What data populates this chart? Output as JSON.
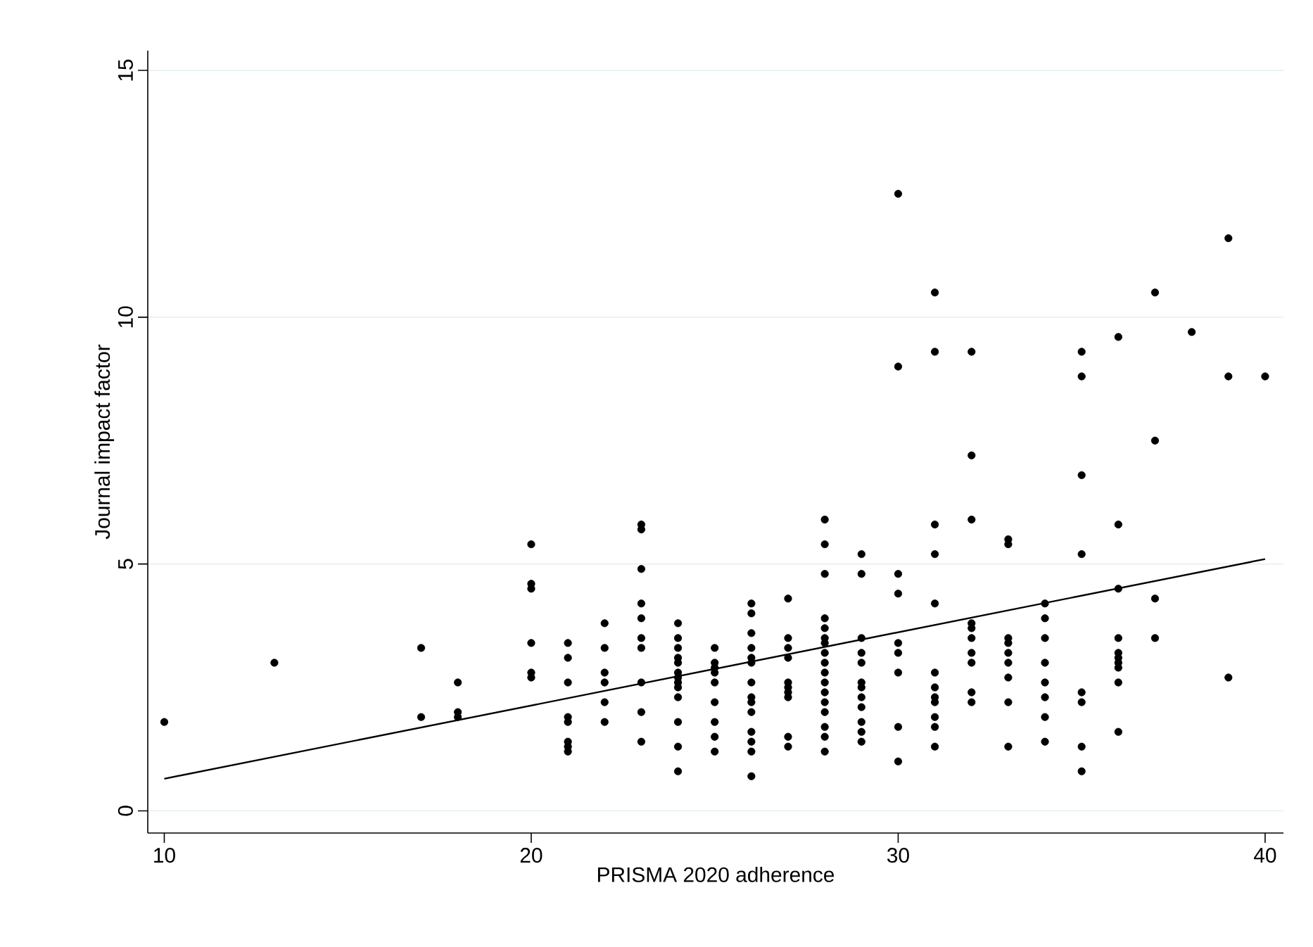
{
  "chart_data": {
    "type": "scatter",
    "xlabel": "PRISMA 2020 adherence",
    "ylabel": "Journal impact factor",
    "xlim": [
      9.55,
      40.5
    ],
    "ylim": [
      -0.45,
      15.4
    ],
    "xticks": [
      10,
      20,
      30,
      40
    ],
    "yticks": [
      0,
      5,
      10,
      15
    ],
    "grid": "y",
    "series": [
      {
        "color": "#000000",
        "marker": "circle",
        "x": [
          10,
          13,
          17,
          17,
          18,
          18,
          18,
          20,
          20,
          20,
          20,
          20,
          20,
          21,
          21,
          21,
          21,
          21,
          21,
          21,
          21,
          22,
          22,
          22,
          22,
          22,
          22,
          23,
          23,
          23,
          23,
          23,
          23,
          23,
          23,
          23,
          23,
          24,
          24,
          24,
          24,
          24,
          24,
          24,
          24,
          24,
          24,
          24,
          24,
          24,
          25,
          25,
          25,
          25,
          25,
          25,
          25,
          25,
          25,
          26,
          26,
          26,
          26,
          26,
          26,
          26,
          26,
          26,
          26,
          26,
          26,
          26,
          26,
          27,
          27,
          27,
          27,
          27,
          27,
          27,
          27,
          27,
          27,
          28,
          28,
          28,
          28,
          28,
          28,
          28,
          28,
          28,
          28,
          28,
          28,
          28,
          28,
          28,
          28,
          28,
          29,
          29,
          29,
          29,
          29,
          29,
          29,
          29,
          29,
          29,
          29,
          29,
          30,
          30,
          30,
          30,
          30,
          30,
          30,
          30,
          30,
          31,
          31,
          31,
          31,
          31,
          31,
          31,
          31,
          31,
          31,
          31,
          31,
          32,
          32,
          32,
          32,
          32,
          32,
          32,
          32,
          32,
          32,
          33,
          33,
          33,
          33,
          33,
          33,
          33,
          33,
          33,
          34,
          34,
          34,
          34,
          34,
          34,
          34,
          34,
          35,
          35,
          35,
          35,
          35,
          35,
          35,
          35,
          36,
          36,
          36,
          36,
          36,
          36,
          36,
          36,
          36,
          36,
          37,
          37,
          37,
          37,
          38,
          39,
          39,
          39,
          40
        ],
        "values": [
          1.8,
          3.0,
          3.3,
          1.9,
          2.6,
          2.0,
          1.9,
          5.4,
          4.6,
          4.5,
          3.4,
          2.8,
          2.7,
          3.4,
          3.1,
          2.6,
          1.9,
          1.8,
          1.4,
          1.3,
          1.2,
          3.8,
          3.3,
          2.8,
          2.6,
          2.2,
          1.8,
          5.8,
          5.7,
          4.9,
          4.2,
          3.9,
          3.5,
          3.3,
          2.6,
          2.0,
          1.4,
          3.8,
          3.5,
          3.3,
          3.1,
          3.0,
          2.8,
          2.7,
          2.6,
          2.5,
          2.3,
          1.8,
          1.3,
          0.8,
          3.3,
          3.0,
          2.9,
          2.8,
          2.6,
          2.2,
          1.8,
          1.5,
          1.2,
          4.2,
          4.0,
          3.6,
          3.3,
          3.1,
          3.0,
          2.6,
          2.3,
          2.2,
          2.0,
          1.6,
          1.4,
          1.2,
          0.7,
          4.3,
          3.5,
          3.3,
          3.1,
          2.6,
          2.5,
          2.4,
          2.3,
          1.5,
          1.3,
          5.9,
          5.4,
          4.8,
          3.9,
          3.7,
          3.5,
          3.4,
          3.2,
          3.0,
          2.8,
          2.6,
          2.4,
          2.2,
          2.0,
          1.7,
          1.5,
          1.2,
          5.2,
          4.8,
          3.5,
          3.2,
          3.0,
          2.6,
          2.5,
          2.3,
          2.1,
          1.8,
          1.6,
          1.4,
          12.5,
          9.0,
          4.8,
          4.4,
          3.4,
          3.2,
          2.8,
          1.7,
          1.0,
          10.5,
          9.3,
          5.8,
          5.2,
          4.2,
          2.8,
          2.5,
          2.3,
          2.2,
          1.9,
          1.7,
          1.3,
          9.3,
          7.2,
          5.9,
          3.8,
          3.7,
          3.5,
          3.2,
          3.0,
          2.4,
          2.2,
          5.5,
          5.4,
          3.5,
          3.4,
          3.2,
          3.0,
          2.7,
          2.2,
          1.3,
          4.2,
          3.9,
          3.5,
          3.0,
          2.6,
          2.3,
          1.9,
          1.4,
          9.3,
          8.8,
          6.8,
          5.2,
          2.4,
          2.2,
          1.3,
          0.8,
          9.6,
          5.8,
          4.5,
          3.5,
          3.2,
          3.1,
          3.0,
          2.9,
          2.6,
          1.6,
          10.5,
          7.5,
          4.3,
          3.5,
          9.7,
          11.6,
          8.8,
          2.7,
          8.8
        ]
      },
      {
        "type": "line",
        "color": "#000000",
        "marker": "none",
        "line_style": "solid",
        "x": [
          10,
          40
        ],
        "values": [
          0.65,
          5.1
        ]
      }
    ]
  }
}
